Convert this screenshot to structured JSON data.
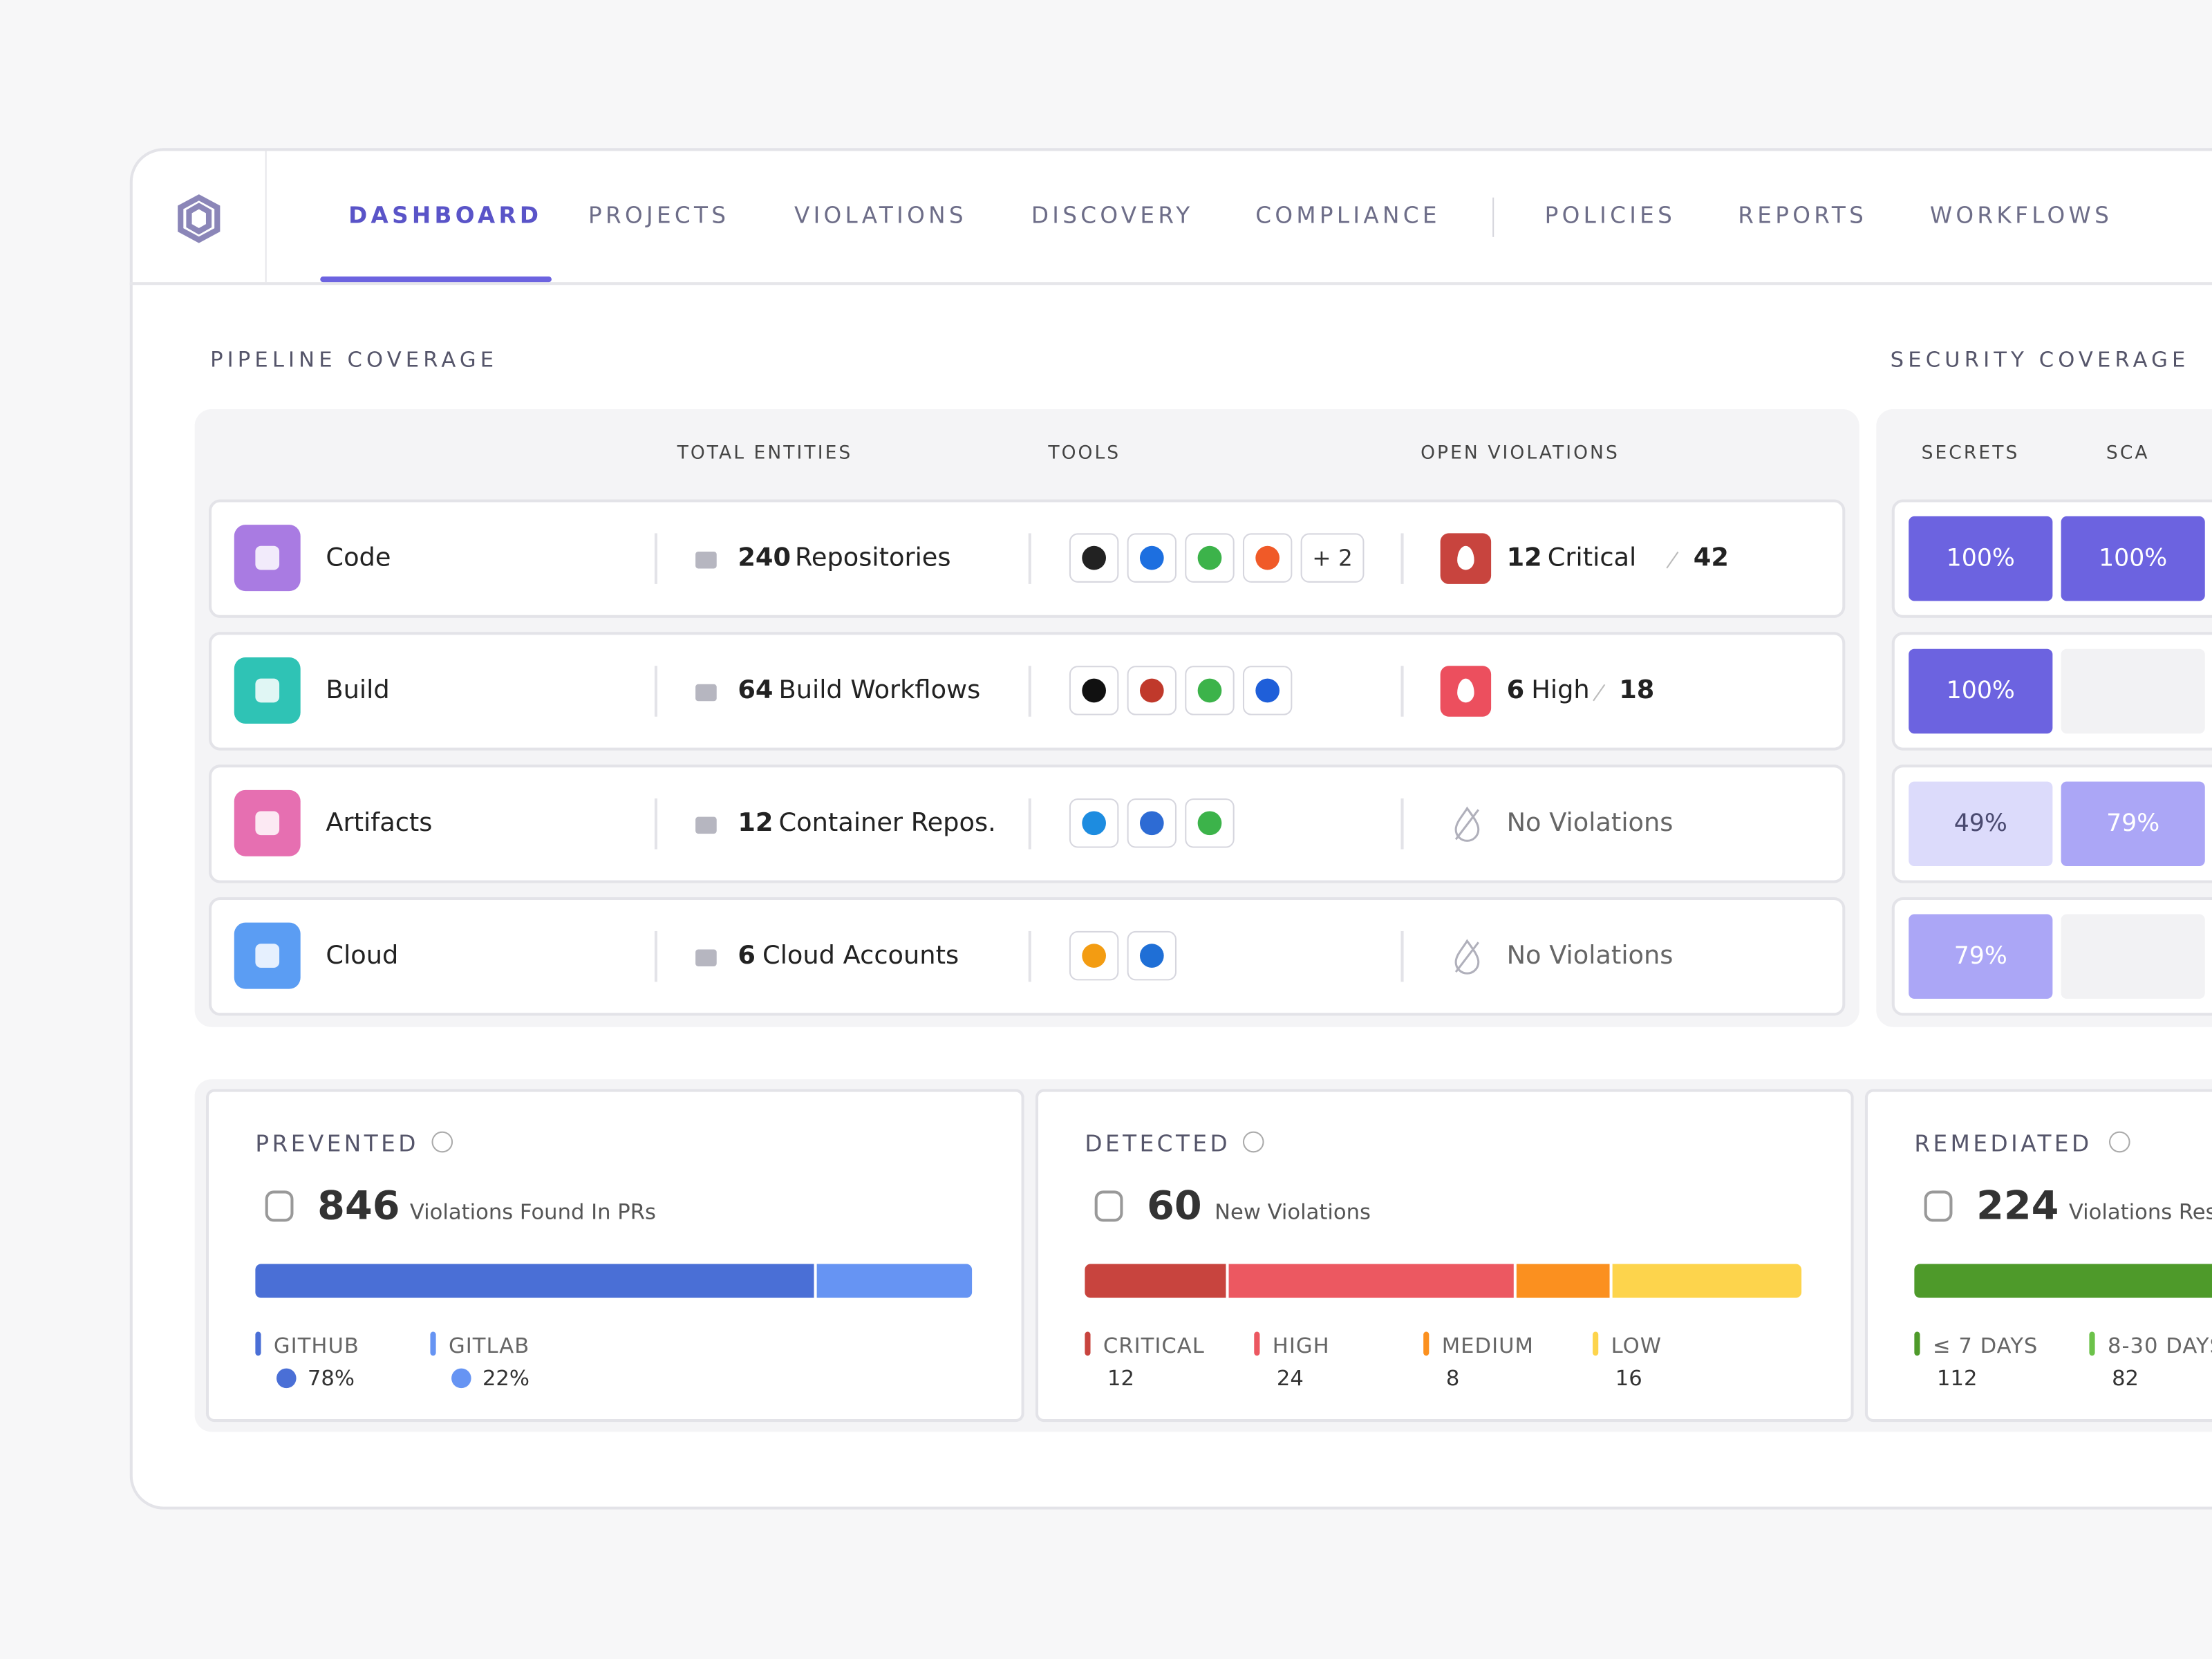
{
  "nav": {
    "items": [
      "DASHBOARD",
      "PROJECTS",
      "VIOLATIONS",
      "DISCOVERY",
      "COMPLIANCE",
      "POLICIES",
      "REPORTS",
      "WORKFLOWS"
    ],
    "active": 0
  },
  "pipeline": {
    "title": "PIPELINE COVERAGE",
    "headers": [
      "TOTAL ENTITIES",
      "TOOLS",
      "OPEN VIOLATIONS"
    ],
    "rows": [
      {
        "name": "Code",
        "count": "240",
        "entity": "Repositories",
        "tools_more": "+ 2",
        "violations_count": "12",
        "violations_label": "Critical",
        "violations_total": "42",
        "color": "#c8443e"
      },
      {
        "name": "Build",
        "count": "64",
        "entity": "Build Workflows",
        "violations_count": "6",
        "violations_label": "High",
        "violations_total": "18",
        "color": "#ec4f5e"
      },
      {
        "name": "Artifacts",
        "count": "12",
        "entity": "Container Repos.",
        "violations_text": "No Violations"
      },
      {
        "name": "Cloud",
        "count": "6",
        "entity": "Cloud Accounts",
        "violations_text": "No Violations"
      }
    ]
  },
  "security": {
    "title": "SECURITY COVERAGE",
    "headers": [
      "SECRETS",
      "SCA"
    ],
    "rows": [
      [
        "100%",
        "100%"
      ],
      [
        "100%",
        null
      ],
      [
        "49%",
        "79%"
      ],
      [
        "79%",
        null
      ]
    ]
  },
  "metrics": [
    {
      "title": "PREVENTED",
      "value": "846",
      "caption": "Violations Found In PRs",
      "segments": [
        {
          "name": "GITHUB",
          "value": 78,
          "label": "78%",
          "color": "#4a6fd6"
        },
        {
          "name": "GITLAB",
          "value": 22,
          "label": "22%",
          "color": "#6694f3"
        }
      ]
    },
    {
      "title": "DETECTED",
      "value": "60",
      "caption": "New Violations",
      "segments": [
        {
          "name": "CRITICAL",
          "value": 12,
          "color": "#c8443e"
        },
        {
          "name": "HIGH",
          "value": 24,
          "color": "#ec5861"
        },
        {
          "name": "MEDIUM",
          "value": 8,
          "color": "#fb901f"
        },
        {
          "name": "LOW",
          "value": 16,
          "color": "#fdd44c"
        }
      ]
    },
    {
      "title": "REMEDIATED",
      "value": "224",
      "caption": "Violations Res",
      "segments": [
        {
          "name": "≤ 7 DAYS",
          "value": 112,
          "color": "#4e9a2a"
        },
        {
          "name": "8-30 DAYS",
          "value": 82,
          "color": "#6cc24a"
        }
      ]
    }
  ]
}
